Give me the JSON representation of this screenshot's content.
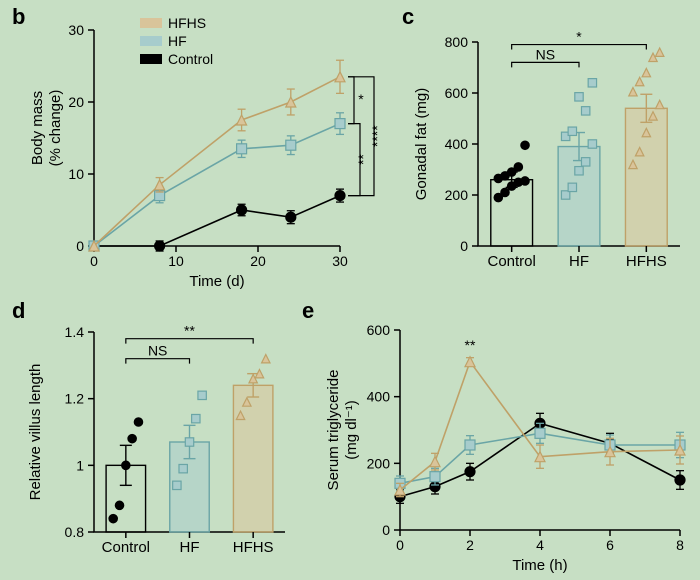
{
  "global": {
    "background_color": "#c7dfc4",
    "font_family": "Arial",
    "groups": {
      "Control": {
        "color_stroke": "#000000",
        "color_fill": "#000000"
      },
      "HF": {
        "color_stroke": "#6aa5a6",
        "color_fill": "#a7cccc"
      },
      "HFHS": {
        "color_stroke": "#bfa168",
        "color_fill": "#d9c49a"
      }
    }
  },
  "panel_b": {
    "label": "b",
    "type": "line",
    "x": [
      0,
      8,
      18,
      24,
      30
    ],
    "x_ticks": [
      0,
      10,
      20,
      30
    ],
    "xlim": [
      0,
      30
    ],
    "xlabel": "Time (d)",
    "y_ticks": [
      0,
      10,
      20,
      30
    ],
    "ylim": [
      0,
      30
    ],
    "ylabel_top": "Body mass",
    "ylabel_bottom": "(% change)",
    "series": {
      "Control": {
        "marker": "circle",
        "y": [
          0,
          0,
          5,
          4,
          7
        ],
        "err": [
          0,
          0.7,
          0.8,
          0.9,
          0.9
        ]
      },
      "HF": {
        "marker": "square",
        "y": [
          0,
          7,
          13.5,
          14,
          17
        ],
        "err": [
          0,
          1.0,
          1.2,
          1.3,
          1.5
        ]
      },
      "HFHS": {
        "marker": "triangle",
        "y": [
          0,
          8.5,
          17.5,
          20,
          23.5
        ],
        "err": [
          0,
          1.0,
          1.5,
          1.8,
          2.3
        ]
      }
    },
    "legend_order": [
      "HFHS",
      "HF",
      "Control"
    ],
    "sig": [
      {
        "pair": [
          "HFHS",
          "HF"
        ],
        "text": "*"
      },
      {
        "pair": [
          "HF",
          "Control"
        ],
        "text": "**"
      },
      {
        "pair": [
          "HFHS",
          "Control"
        ],
        "text": "****"
      }
    ],
    "marker_size": 5,
    "line_width": 1.6,
    "err_cap": 4
  },
  "panel_c": {
    "label": "c",
    "type": "bar-scatter",
    "categories": [
      "Control",
      "HF",
      "HFHS"
    ],
    "ylabel": "Gonadal fat (mg)",
    "y_ticks": [
      0,
      200,
      400,
      600,
      800
    ],
    "ylim": [
      0,
      800
    ],
    "bar_means": [
      260,
      390,
      540
    ],
    "bar_err": [
      30,
      55,
      55
    ],
    "points": {
      "Control": [
        190,
        210,
        235,
        250,
        255,
        265,
        275,
        290,
        310,
        395
      ],
      "HF": [
        200,
        230,
        295,
        330,
        400,
        430,
        450,
        585,
        530,
        640
      ],
      "HFHS": [
        320,
        370,
        445,
        510,
        555,
        605,
        645,
        680,
        740,
        760
      ]
    },
    "markers": {
      "Control": "circle",
      "HF": "square",
      "HFHS": "triangle"
    },
    "bar_width": 0.62,
    "sig": [
      {
        "from": 0,
        "to": 1,
        "text": "NS",
        "y": 720
      },
      {
        "from": 0,
        "to": 2,
        "text": "*",
        "y": 790
      }
    ]
  },
  "panel_d": {
    "label": "d",
    "type": "bar-scatter",
    "categories": [
      "Control",
      "HF",
      "HFHS"
    ],
    "ylabel": "Relative villus length",
    "y_ticks": [
      0.8,
      1.0,
      1.2,
      1.4
    ],
    "ylim": [
      0.8,
      1.4
    ],
    "bar_means": [
      1.0,
      1.07,
      1.24
    ],
    "bar_err": [
      0.06,
      0.05,
      0.035
    ],
    "points": {
      "Control": [
        0.84,
        0.88,
        1.0,
        1.08,
        1.13
      ],
      "HF": [
        0.94,
        0.99,
        1.07,
        1.14,
        1.21
      ],
      "HFHS": [
        1.15,
        1.19,
        1.26,
        1.275,
        1.32
      ]
    },
    "markers": {
      "Control": "circle",
      "HF": "square",
      "HFHS": "triangle"
    },
    "bar_width": 0.62,
    "sig": [
      {
        "from": 0,
        "to": 1,
        "text": "NS",
        "y": 1.32
      },
      {
        "from": 0,
        "to": 2,
        "text": "**",
        "y": 1.38
      }
    ]
  },
  "panel_e": {
    "label": "e",
    "type": "line",
    "x": [
      0,
      1,
      2,
      4,
      6,
      8
    ],
    "x_ticks": [
      0,
      2,
      4,
      6,
      8
    ],
    "xlim": [
      0,
      8
    ],
    "xlabel": "Time (h)",
    "y_ticks": [
      0,
      200,
      400,
      600
    ],
    "ylim": [
      0,
      600
    ],
    "ylabel_top": "Serum triglyceride",
    "ylabel_bottom": "(mg dl⁻¹)",
    "series": {
      "Control": {
        "marker": "circle",
        "y": [
          100,
          130,
          175,
          320,
          260,
          150
        ],
        "err": [
          20,
          22,
          25,
          30,
          30,
          28
        ]
      },
      "HF": {
        "marker": "square",
        "y": [
          140,
          160,
          255,
          290,
          255,
          255
        ],
        "err": [
          22,
          25,
          28,
          30,
          30,
          38
        ]
      },
      "HFHS": {
        "marker": "triangle",
        "y": [
          120,
          205,
          505,
          220,
          235,
          240
        ],
        "err": [
          20,
          25,
          12,
          35,
          40,
          42
        ]
      }
    },
    "sig": [
      {
        "at_x": 2,
        "text": "**",
        "y": 540
      }
    ],
    "marker_size": 5,
    "line_width": 1.6,
    "err_cap": 4
  }
}
